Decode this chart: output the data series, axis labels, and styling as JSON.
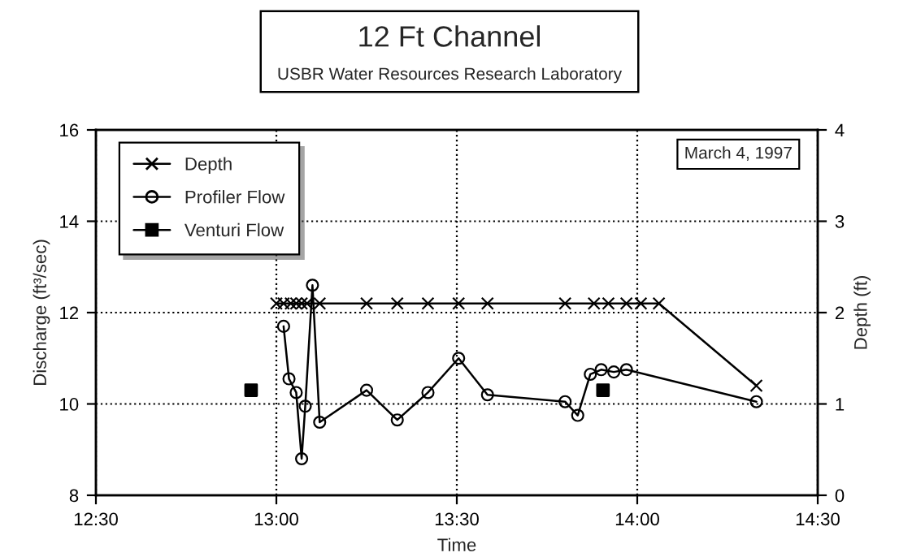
{
  "chart_data": {
    "type": "line",
    "title": "12 Ft Channel",
    "subtitle": "USBR Water Resources Research Laboratory",
    "xlabel": "Time",
    "ylabel": "Discharge (ft³/sec)",
    "y2label": "Depth (ft)",
    "annotations": [
      "March 4, 1997"
    ],
    "series": [
      {
        "name": "Depth",
        "axis": "y2",
        "marker": "cross",
        "color": "#000000",
        "x": [
          13.0,
          13.02,
          13.04,
          13.055,
          13.07,
          13.085,
          13.12,
          13.25,
          13.335,
          13.42,
          13.505,
          13.585,
          13.8,
          13.88,
          13.92,
          13.97,
          14.01,
          14.06,
          14.33
        ],
        "values": [
          2.1,
          2.1,
          2.1,
          2.1,
          2.1,
          2.1,
          2.1,
          2.1,
          2.1,
          2.1,
          2.1,
          2.1,
          2.1,
          2.1,
          2.1,
          2.1,
          2.1,
          2.1,
          1.2
        ]
      },
      {
        "name": "Profiler Flow",
        "marker": "circle",
        "color": "#000000",
        "x": [
          13.02,
          13.035,
          13.055,
          13.07,
          13.08,
          13.1,
          13.12,
          13.25,
          13.335,
          13.42,
          13.505,
          13.585,
          13.8,
          13.835,
          13.87,
          13.9,
          13.935,
          13.97,
          14.33
        ],
        "values": [
          11.7,
          10.55,
          10.25,
          8.8,
          9.95,
          12.6,
          9.6,
          10.3,
          9.65,
          10.25,
          11.0,
          10.2,
          10.05,
          9.75,
          10.65,
          10.75,
          10.7,
          10.75,
          10.05
        ]
      },
      {
        "name": "Venturi Flow",
        "type": "scatter",
        "marker": "square",
        "color": "#000000",
        "x": [
          12.93,
          13.905
        ],
        "values": [
          10.3,
          10.3
        ]
      }
    ],
    "xlim": [
      12.5,
      14.5
    ],
    "xticks": [
      {
        "value": 12.5,
        "label": "12:30"
      },
      {
        "value": 13.0,
        "label": "13:00"
      },
      {
        "value": 13.5,
        "label": "13:30"
      },
      {
        "value": 14.0,
        "label": "14:00"
      },
      {
        "value": 14.5,
        "label": "14:30"
      }
    ],
    "ylim": [
      8,
      16
    ],
    "yticks": [
      8,
      10,
      12,
      14,
      16
    ],
    "y2lim": [
      0,
      4
    ],
    "y2ticks": [
      0,
      1,
      2,
      3,
      4
    ],
    "grid": true,
    "legend": "top left"
  }
}
